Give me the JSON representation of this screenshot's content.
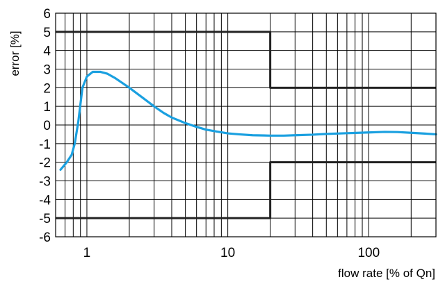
{
  "chart_data": {
    "type": "line",
    "xlabel": "flow rate [% of Qn]",
    "ylabel": "error [%]",
    "xscale": "log",
    "xlim": [
      0.6,
      300
    ],
    "ylim": [
      -6,
      6
    ],
    "grid": true,
    "y_ticks": [
      6,
      5,
      4,
      3,
      2,
      1,
      0,
      -1,
      -2,
      -3,
      -4,
      -5,
      -6
    ],
    "x_ticks": [
      1,
      10,
      100
    ],
    "x_tick_labels": [
      "1",
      "10",
      "100"
    ],
    "y_tick_labels": [
      "6",
      "5",
      "4",
      "3",
      "2",
      "1",
      "0",
      "-1",
      "-2",
      "-3",
      "-4",
      "-5",
      "-6"
    ],
    "series": [
      {
        "color": "#1aa0e0",
        "x": [
          0.65,
          0.72,
          0.78,
          0.82,
          0.87,
          0.93,
          1.0,
          1.1,
          1.25,
          1.4,
          1.6,
          2.0,
          2.5,
          3.0,
          3.5,
          4.0,
          5.0,
          6.0,
          7.0,
          8.0,
          10.0,
          12.0,
          15.0,
          20.0,
          25.0,
          30.0,
          40.0,
          50.0,
          70.0,
          100.0,
          130.0,
          160.0,
          200.0,
          250.0,
          300.0
        ],
        "y": [
          -2.4,
          -2.0,
          -1.6,
          -1.0,
          0.2,
          2.0,
          2.6,
          2.85,
          2.85,
          2.75,
          2.5,
          2.0,
          1.45,
          1.0,
          0.65,
          0.4,
          0.1,
          -0.1,
          -0.25,
          -0.33,
          -0.45,
          -0.5,
          -0.55,
          -0.57,
          -0.57,
          -0.55,
          -0.52,
          -0.48,
          -0.44,
          -0.4,
          -0.37,
          -0.38,
          -0.42,
          -0.46,
          -0.5
        ]
      },
      {
        "color": "#222222",
        "x": [
          0.6,
          20,
          20,
          300
        ],
        "y": [
          5,
          5,
          2,
          2
        ]
      },
      {
        "color": "#222222",
        "x": [
          0.6,
          20,
          20,
          300
        ],
        "y": [
          -5,
          -5,
          -2,
          -2
        ]
      }
    ]
  }
}
